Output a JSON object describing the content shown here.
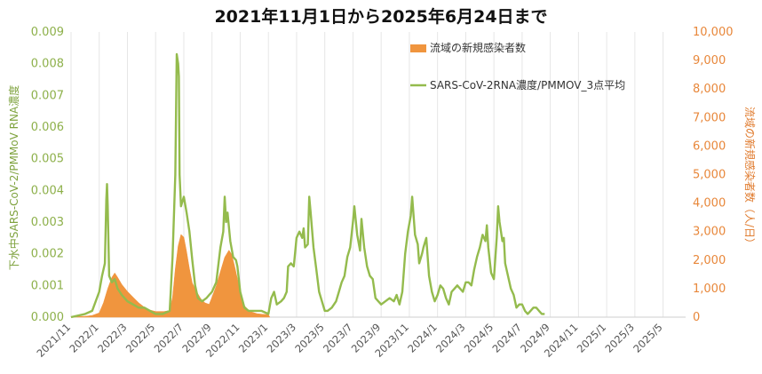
{
  "chart_data": {
    "type": "bar+line",
    "title": "2021年11月1日から2025年6月24日まで",
    "ylabel_left": "下水中SARS-CoV-2/PMMoV RNA濃度",
    "ylabel_right": "流域の新規感染者数（人/日）",
    "y_left_ticks": [
      "0.000",
      "0.001",
      "0.002",
      "0.003",
      "0.004",
      "0.005",
      "0.006",
      "0.007",
      "0.008",
      "0.009"
    ],
    "y_right_ticks": [
      "0",
      "1,000",
      "2,000",
      "3,000",
      "4,000",
      "5,000",
      "6,000",
      "7,000",
      "8,000",
      "9,000",
      "10,000"
    ],
    "ylim_left": [
      0,
      0.009
    ],
    "ylim_right": [
      0,
      10000
    ],
    "x_tick_labels": [
      "2021/11",
      "2022/1",
      "2022/3",
      "2022/5",
      "2022/7",
      "2022/9",
      "2022/11",
      "2023/1",
      "2023/3",
      "2023/5",
      "2023/7",
      "2023/9",
      "2023/11",
      "2024/1",
      "2024/3",
      "2024/5",
      "2024/7",
      "2024/9",
      "2024/11",
      "2025/1",
      "2025/3",
      "2025/5"
    ],
    "legend": {
      "bar_label": "流域の新規感染者数",
      "line_label": "SARS-CoV-2RNA濃度/PMMOV_3点平均"
    },
    "colors": {
      "bar": "#f0953e",
      "line": "#94bb4d"
    },
    "bar_series": {
      "name": "流域の新規感染者数",
      "points": [
        [
          0.0,
          20
        ],
        [
          1.0,
          30
        ],
        [
          1.5,
          60
        ],
        [
          2.0,
          150
        ],
        [
          2.3,
          500
        ],
        [
          2.6,
          1000
        ],
        [
          2.9,
          1400
        ],
        [
          3.1,
          1550
        ],
        [
          3.3,
          1400
        ],
        [
          3.6,
          1150
        ],
        [
          4.0,
          900
        ],
        [
          4.4,
          700
        ],
        [
          4.8,
          500
        ],
        [
          5.2,
          350
        ],
        [
          5.6,
          250
        ],
        [
          6.0,
          200
        ],
        [
          6.6,
          200
        ],
        [
          7.0,
          230
        ],
        [
          7.2,
          700
        ],
        [
          7.4,
          1700
        ],
        [
          7.6,
          2500
        ],
        [
          7.8,
          2900
        ],
        [
          8.0,
          2800
        ],
        [
          8.2,
          2300
        ],
        [
          8.4,
          1700
        ],
        [
          8.6,
          1200
        ],
        [
          8.9,
          900
        ],
        [
          9.2,
          650
        ],
        [
          9.5,
          500
        ],
        [
          9.8,
          450
        ],
        [
          10.0,
          700
        ],
        [
          10.3,
          1100
        ],
        [
          10.6,
          1600
        ],
        [
          10.9,
          2100
        ],
        [
          11.2,
          2350
        ],
        [
          11.4,
          2200
        ],
        [
          11.6,
          1800
        ],
        [
          11.8,
          1350
        ],
        [
          12.0,
          900
        ],
        [
          12.3,
          400
        ],
        [
          12.7,
          200
        ],
        [
          13.2,
          120
        ],
        [
          13.6,
          100
        ],
        [
          14.0,
          90
        ],
        [
          14.1,
          0
        ]
      ]
    },
    "line_series": {
      "name": "SARS-CoV-2RNA濃度/PMMOV_3点平均",
      "points": [
        [
          0.0,
          0.0
        ],
        [
          1.0,
          0.0001
        ],
        [
          1.5,
          0.0002
        ],
        [
          2.0,
          0.0008
        ],
        [
          2.2,
          0.0013
        ],
        [
          2.4,
          0.0017
        ],
        [
          2.5,
          0.0037
        ],
        [
          2.55,
          0.0042
        ],
        [
          2.6,
          0.0035
        ],
        [
          2.7,
          0.0013
        ],
        [
          2.9,
          0.0011
        ],
        [
          3.1,
          0.0012
        ],
        [
          3.3,
          0.0009
        ],
        [
          3.6,
          0.0007
        ],
        [
          4.0,
          0.0005
        ],
        [
          4.4,
          0.0004
        ],
        [
          4.8,
          0.0003
        ],
        [
          5.2,
          0.0003
        ],
        [
          5.6,
          0.0002
        ],
        [
          6.0,
          0.0001
        ],
        [
          6.5,
          0.0001
        ],
        [
          7.0,
          0.0002
        ],
        [
          7.2,
          0.0019
        ],
        [
          7.4,
          0.0045
        ],
        [
          7.5,
          0.0083
        ],
        [
          7.6,
          0.008
        ],
        [
          7.65,
          0.0076
        ],
        [
          7.7,
          0.0045
        ],
        [
          7.8,
          0.0035
        ],
        [
          8.0,
          0.0038
        ],
        [
          8.2,
          0.0033
        ],
        [
          8.4,
          0.0027
        ],
        [
          8.6,
          0.0018
        ],
        [
          8.8,
          0.001
        ],
        [
          9.0,
          0.0006
        ],
        [
          9.3,
          0.0005
        ],
        [
          9.6,
          0.0006
        ],
        [
          9.8,
          0.0007
        ],
        [
          10.0,
          0.0008
        ],
        [
          10.3,
          0.0011
        ],
        [
          10.6,
          0.0022
        ],
        [
          10.8,
          0.0027
        ],
        [
          10.9,
          0.0038
        ],
        [
          11.0,
          0.003
        ],
        [
          11.1,
          0.0033
        ],
        [
          11.3,
          0.0024
        ],
        [
          11.5,
          0.0019
        ],
        [
          11.7,
          0.0018
        ],
        [
          11.8,
          0.0016
        ],
        [
          12.0,
          0.0008
        ],
        [
          12.3,
          0.0003
        ],
        [
          12.6,
          0.0002
        ],
        [
          13.0,
          0.0002
        ],
        [
          13.5,
          0.0002
        ],
        [
          14.0,
          0.0001
        ],
        [
          14.2,
          0.0006
        ],
        [
          14.4,
          0.0008
        ],
        [
          14.6,
          0.0004
        ],
        [
          14.9,
          0.0005
        ],
        [
          15.1,
          0.0006
        ],
        [
          15.3,
          0.0008
        ],
        [
          15.4,
          0.0016
        ],
        [
          15.6,
          0.0017
        ],
        [
          15.8,
          0.0016
        ],
        [
          16.0,
          0.0025
        ],
        [
          16.2,
          0.0027
        ],
        [
          16.4,
          0.0025
        ],
        [
          16.5,
          0.0028
        ],
        [
          16.6,
          0.0022
        ],
        [
          16.8,
          0.0023
        ],
        [
          16.9,
          0.0038
        ],
        [
          17.0,
          0.0033
        ],
        [
          17.2,
          0.0022
        ],
        [
          17.4,
          0.0015
        ],
        [
          17.6,
          0.0008
        ],
        [
          17.8,
          0.0005
        ],
        [
          18.0,
          0.0002
        ],
        [
          18.2,
          0.0002
        ],
        [
          18.5,
          0.0003
        ],
        [
          18.8,
          0.0005
        ],
        [
          19.0,
          0.0008
        ],
        [
          19.2,
          0.0011
        ],
        [
          19.4,
          0.0013
        ],
        [
          19.6,
          0.0019
        ],
        [
          19.8,
          0.0022
        ],
        [
          20.0,
          0.003
        ],
        [
          20.1,
          0.0035
        ],
        [
          20.3,
          0.0026
        ],
        [
          20.5,
          0.0021
        ],
        [
          20.6,
          0.0031
        ],
        [
          20.8,
          0.0022
        ],
        [
          21.0,
          0.0016
        ],
        [
          21.2,
          0.0013
        ],
        [
          21.4,
          0.0012
        ],
        [
          21.6,
          0.0006
        ],
        [
          21.8,
          0.0005
        ],
        [
          22.0,
          0.0004
        ],
        [
          22.3,
          0.0005
        ],
        [
          22.6,
          0.0006
        ],
        [
          22.9,
          0.0005
        ],
        [
          23.1,
          0.0007
        ],
        [
          23.3,
          0.0004
        ],
        [
          23.5,
          0.0008
        ],
        [
          23.7,
          0.002
        ],
        [
          23.9,
          0.0027
        ],
        [
          24.1,
          0.0032
        ],
        [
          24.2,
          0.0038
        ],
        [
          24.4,
          0.0026
        ],
        [
          24.6,
          0.0023
        ],
        [
          24.7,
          0.0017
        ],
        [
          24.9,
          0.002
        ],
        [
          25.0,
          0.0022
        ],
        [
          25.2,
          0.0025
        ],
        [
          25.4,
          0.0013
        ],
        [
          25.6,
          0.0008
        ],
        [
          25.8,
          0.0005
        ],
        [
          26.0,
          0.0007
        ],
        [
          26.2,
          0.001
        ],
        [
          26.4,
          0.0009
        ],
        [
          26.6,
          0.0006
        ],
        [
          26.8,
          0.0004
        ],
        [
          27.0,
          0.0008
        ],
        [
          27.2,
          0.0009
        ],
        [
          27.4,
          0.001
        ],
        [
          27.6,
          0.0009
        ],
        [
          27.8,
          0.0008
        ],
        [
          28.0,
          0.0011
        ],
        [
          28.2,
          0.0011
        ],
        [
          28.4,
          0.001
        ],
        [
          28.6,
          0.0015
        ],
        [
          28.8,
          0.0019
        ],
        [
          29.0,
          0.0022
        ],
        [
          29.2,
          0.0026
        ],
        [
          29.4,
          0.0024
        ],
        [
          29.5,
          0.0029
        ],
        [
          29.6,
          0.0022
        ],
        [
          29.8,
          0.0014
        ],
        [
          30.0,
          0.0012
        ],
        [
          30.2,
          0.0025
        ],
        [
          30.3,
          0.0035
        ],
        [
          30.4,
          0.003
        ],
        [
          30.6,
          0.0024
        ],
        [
          30.7,
          0.0025
        ],
        [
          30.8,
          0.0017
        ],
        [
          31.0,
          0.0013
        ],
        [
          31.2,
          0.0009
        ],
        [
          31.4,
          0.0007
        ],
        [
          31.6,
          0.0003
        ],
        [
          31.8,
          0.0004
        ],
        [
          32.0,
          0.0004
        ],
        [
          32.2,
          0.0002
        ],
        [
          32.4,
          0.0001
        ],
        [
          32.6,
          0.0002
        ],
        [
          32.8,
          0.0003
        ],
        [
          33.0,
          0.0003
        ],
        [
          33.2,
          0.0002
        ],
        [
          33.4,
          0.0001
        ],
        [
          33.6,
          0.0001
        ]
      ]
    }
  }
}
